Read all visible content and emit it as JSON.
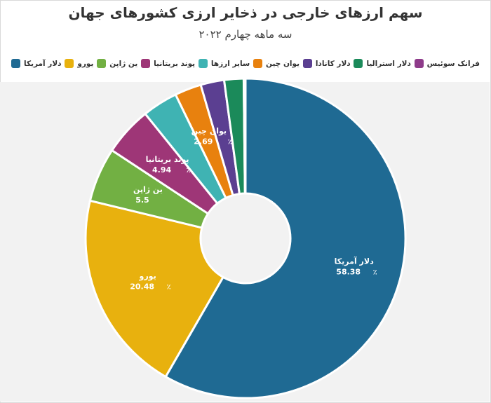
{
  "title": "سهم ارزهای خارجی در ذخایر ارزی کشورهای جهان",
  "subtitle": "سه ماهه چهارم ۲۰۲۲",
  "chart_data": {
    "type": "pie",
    "donut": true,
    "title": "سهم ارزهای خارجی در ذخایر ارزی کشورهای جهان",
    "subtitle": "سه ماهه چهارم ۲۰۲۲",
    "legend_position": "top",
    "categories": [
      "دلار آمریکا",
      "یورو",
      "ین ژاپن",
      "پوند بریتانیا",
      "سایر ارزها",
      "یوان چین",
      "دلار کانادا",
      "دلار استرالیا",
      "فرانک سوئیس"
    ],
    "values": [
      58.38,
      20.48,
      5.5,
      4.94,
      3.59,
      2.69,
      2.38,
      1.96,
      0.18
    ],
    "colors": [
      "#1f6a93",
      "#e8b10e",
      "#72b043",
      "#9e3677",
      "#3fb3b3",
      "#e8810e",
      "#5b3f91",
      "#1b8a5a",
      "#8e3b8a"
    ],
    "labels": [
      {
        "index": 0,
        "name": "دلار آمریکا",
        "value": "58.38",
        "percent_sign": "٪"
      },
      {
        "index": 1,
        "name": "یورو",
        "value": "20.48",
        "percent_sign": "٪"
      },
      {
        "index": 2,
        "name": "ین ژاپن",
        "value": "5.5",
        "percent_sign": ""
      },
      {
        "index": 3,
        "name": "پوند بریتانیا",
        "value": "4.94",
        "percent_sign": "٪"
      },
      {
        "index": 5,
        "name": "یوان چین",
        "value": "2.69",
        "percent_sign": "٪"
      }
    ]
  }
}
